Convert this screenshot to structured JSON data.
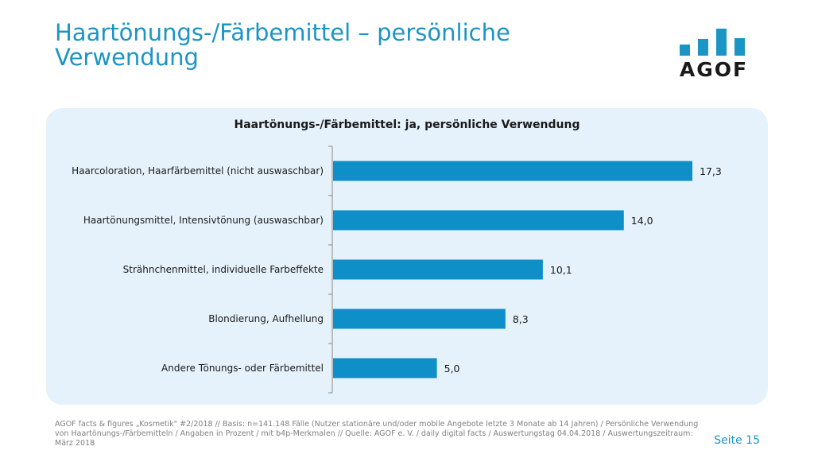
{
  "header": {
    "title": "Haartönungs-/Färbemittel – persönliche Verwendung",
    "logo_text": "AGOF"
  },
  "colors": {
    "accent": "#1b95c4",
    "bar": "#0f8fc8",
    "panel": "#e6f2fb",
    "logo": "#1b95c4"
  },
  "chart_data": {
    "type": "bar",
    "orientation": "horizontal",
    "title": "Haartönungs-/Färbemittel: ja, persönliche Verwendung",
    "categories": [
      "Haarcoloration, Haarfärbemittel (nicht auswaschbar)",
      "Haartönungsmittel, Intensivtönung (auswaschbar)",
      "Strähnchenmittel, individuelle Farbeffekte",
      "Blondierung, Aufhellung",
      "Andere Tönungs- oder Färbemittel"
    ],
    "values": [
      17.3,
      14.0,
      10.1,
      8.3,
      5.0
    ],
    "data_labels": [
      "17,3",
      "14,0",
      "10,1",
      "8,3",
      "5,0"
    ],
    "xlabel": "",
    "ylabel": "",
    "xlim": [
      0,
      20
    ],
    "grid": false,
    "legend": "none"
  },
  "footer": {
    "source": "AGOF facts & figures „Kosmetik\" #2/2018 // Basis: n=141.148 Fälle (Nutzer stationäre und/oder mobile Angebote letzte 3 Monate ab 14 Jahren) / Persönliche Verwendung von Haartönungs-/Färbemitteln / Angaben in Prozent / mit b4p-Merkmalen // Quelle: AGOF e. V. / daily digital facts / Auswertungstag 04.04.2018 / Auswertungszeitraum: März 2018",
    "page_label": "Seite 15"
  }
}
